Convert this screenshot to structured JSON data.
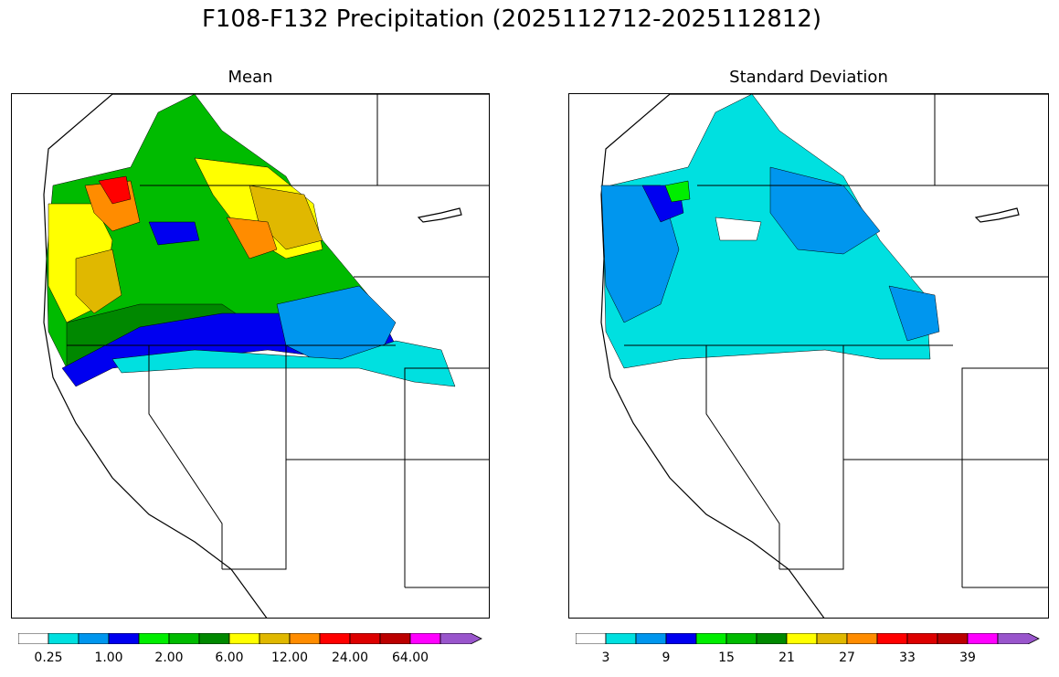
{
  "figure": {
    "title": "F108-F132 Precipitation (2025112712-2025112812)"
  },
  "panels": [
    {
      "title": "Mean",
      "colorbar": {
        "colors": [
          "#ffffff",
          "#00e0e0",
          "#0096ee",
          "#0000f0",
          "#00ee00",
          "#00bb00",
          "#008800",
          "#ffff00",
          "#e0b800",
          "#ff8c00",
          "#ff0000",
          "#dd0000",
          "#bb0000",
          "#ff00ff",
          "#9955cc"
        ],
        "tick_labels": [
          "0.25",
          "1.00",
          "2.00",
          "6.00",
          "12.00",
          "24.00",
          "64.00"
        ]
      }
    },
    {
      "title": "Standard Deviation",
      "colorbar": {
        "colors": [
          "#ffffff",
          "#00e0e0",
          "#0096ee",
          "#0000f0",
          "#00ee00",
          "#00bb00",
          "#008800",
          "#ffff00",
          "#e0b800",
          "#ff8c00",
          "#ff0000",
          "#dd0000",
          "#bb0000",
          "#ff00ff",
          "#9955cc"
        ],
        "tick_labels": [
          "3",
          "9",
          "15",
          "21",
          "27",
          "33",
          "39"
        ]
      }
    }
  ]
}
